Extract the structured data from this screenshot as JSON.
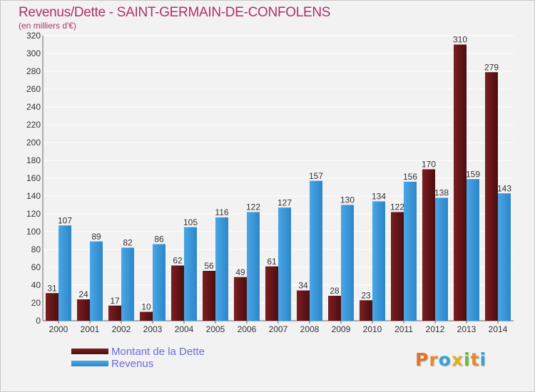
{
  "title": "Revenus/Dette - SAINT-GERMAIN-DE-CONFOLENS",
  "subtitle": "(en milliers d'€)",
  "colors": {
    "debt": "#7a1f22",
    "debt_dark": "#4d0d0f",
    "revenue": "#4aa6e6",
    "revenue_dark": "#2c86c9",
    "title": "#b0306a",
    "legend_text": "#6b6bde"
  },
  "legend": {
    "debt_label": "Montant de la Dette",
    "revenue_label": "Revenus"
  },
  "logo": {
    "letters": [
      "P",
      "r",
      "o",
      "x",
      "i",
      "t",
      "i"
    ]
  },
  "chart_data": {
    "type": "bar",
    "categories": [
      "2000",
      "2001",
      "2002",
      "2003",
      "2004",
      "2005",
      "2006",
      "2007",
      "2008",
      "2009",
      "2010",
      "2011",
      "2012",
      "2013",
      "2014"
    ],
    "series": [
      {
        "name": "Montant de la Dette",
        "values": [
          31,
          24,
          17,
          10,
          62,
          56,
          49,
          61,
          34,
          28,
          23,
          122,
          170,
          310,
          279
        ]
      },
      {
        "name": "Revenus",
        "values": [
          107,
          89,
          82,
          86,
          105,
          116,
          122,
          127,
          157,
          130,
          134,
          156,
          138,
          159,
          143
        ]
      }
    ],
    "ylim": [
      0,
      320
    ],
    "yticks": [
      0,
      20,
      40,
      60,
      80,
      100,
      120,
      140,
      160,
      180,
      200,
      220,
      240,
      260,
      280,
      300,
      320
    ],
    "grid": true,
    "legend_position": "bottom-left"
  }
}
